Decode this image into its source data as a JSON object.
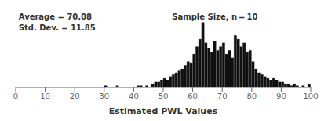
{
  "chart_data": {
    "type": "histogram",
    "annotations": [
      "Average = 70.08",
      "Std. Dev. = 11.85",
      "Sample Size, n = 10"
    ],
    "xlabel": "Estimated PWL Values",
    "bins": [
      0,
      1,
      2,
      3,
      4,
      5,
      6,
      7,
      8,
      9,
      10,
      11,
      12,
      13,
      14,
      15,
      16,
      17,
      18,
      19,
      20,
      21,
      22,
      23,
      24,
      25,
      26,
      27,
      28,
      29,
      30,
      31,
      32,
      33,
      34,
      35,
      36,
      37,
      38,
      39,
      40,
      41,
      42,
      43,
      44,
      45,
      46,
      47,
      48,
      49,
      50,
      51,
      52,
      53,
      54,
      55,
      56,
      57,
      58,
      59,
      60,
      61,
      62,
      63,
      64,
      65,
      66,
      67,
      68,
      69,
      70,
      71,
      72,
      73,
      74,
      75,
      76,
      77,
      78,
      79,
      80,
      81,
      82,
      83,
      84,
      85,
      86,
      87,
      88,
      89,
      90,
      91,
      92,
      93,
      94,
      95,
      96,
      97,
      98,
      99,
      100
    ],
    "counts": [
      0,
      0,
      0,
      0,
      0,
      0,
      0,
      0,
      0,
      0,
      0,
      0,
      0,
      0,
      0,
      0,
      0,
      0,
      0,
      0,
      0,
      0,
      0,
      0,
      0,
      0,
      0,
      0,
      0,
      0,
      1,
      0,
      0,
      0,
      1,
      0,
      0,
      0,
      0,
      0,
      0,
      1,
      1,
      0,
      1,
      0,
      2,
      3,
      3,
      4,
      5,
      4,
      6,
      7,
      8,
      9,
      10,
      12,
      14,
      13,
      18,
      22,
      26,
      35,
      24,
      21,
      19,
      25,
      20,
      22,
      24,
      18,
      20,
      16,
      28,
      26,
      22,
      24,
      19,
      20,
      14,
      10,
      8,
      7,
      6,
      5,
      4,
      5,
      4,
      3,
      3,
      2,
      2,
      1,
      2,
      1,
      0,
      1,
      0,
      2
    ],
    "color": "#111111",
    "xlim": [
      0,
      100
    ],
    "xticks": [
      0,
      10,
      20,
      30,
      40,
      50,
      60,
      70,
      80,
      90,
      100
    ],
    "ylim": [
      0,
      42
    ],
    "tick_labels": "x"
  }
}
